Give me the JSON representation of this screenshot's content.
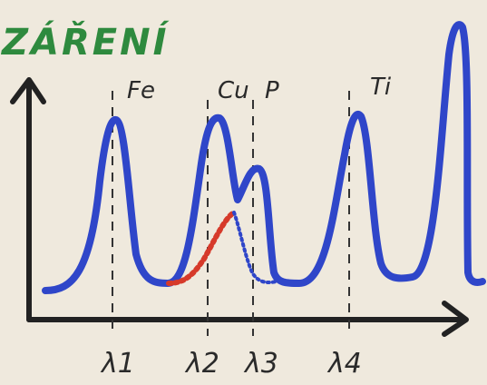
{
  "title": "ZÁŘENÍ",
  "elements": [
    "Fe",
    "Cu",
    "P",
    "Ti"
  ],
  "wavelengths": [
    "λ1",
    "λ2",
    "λ3",
    "λ4"
  ]
}
